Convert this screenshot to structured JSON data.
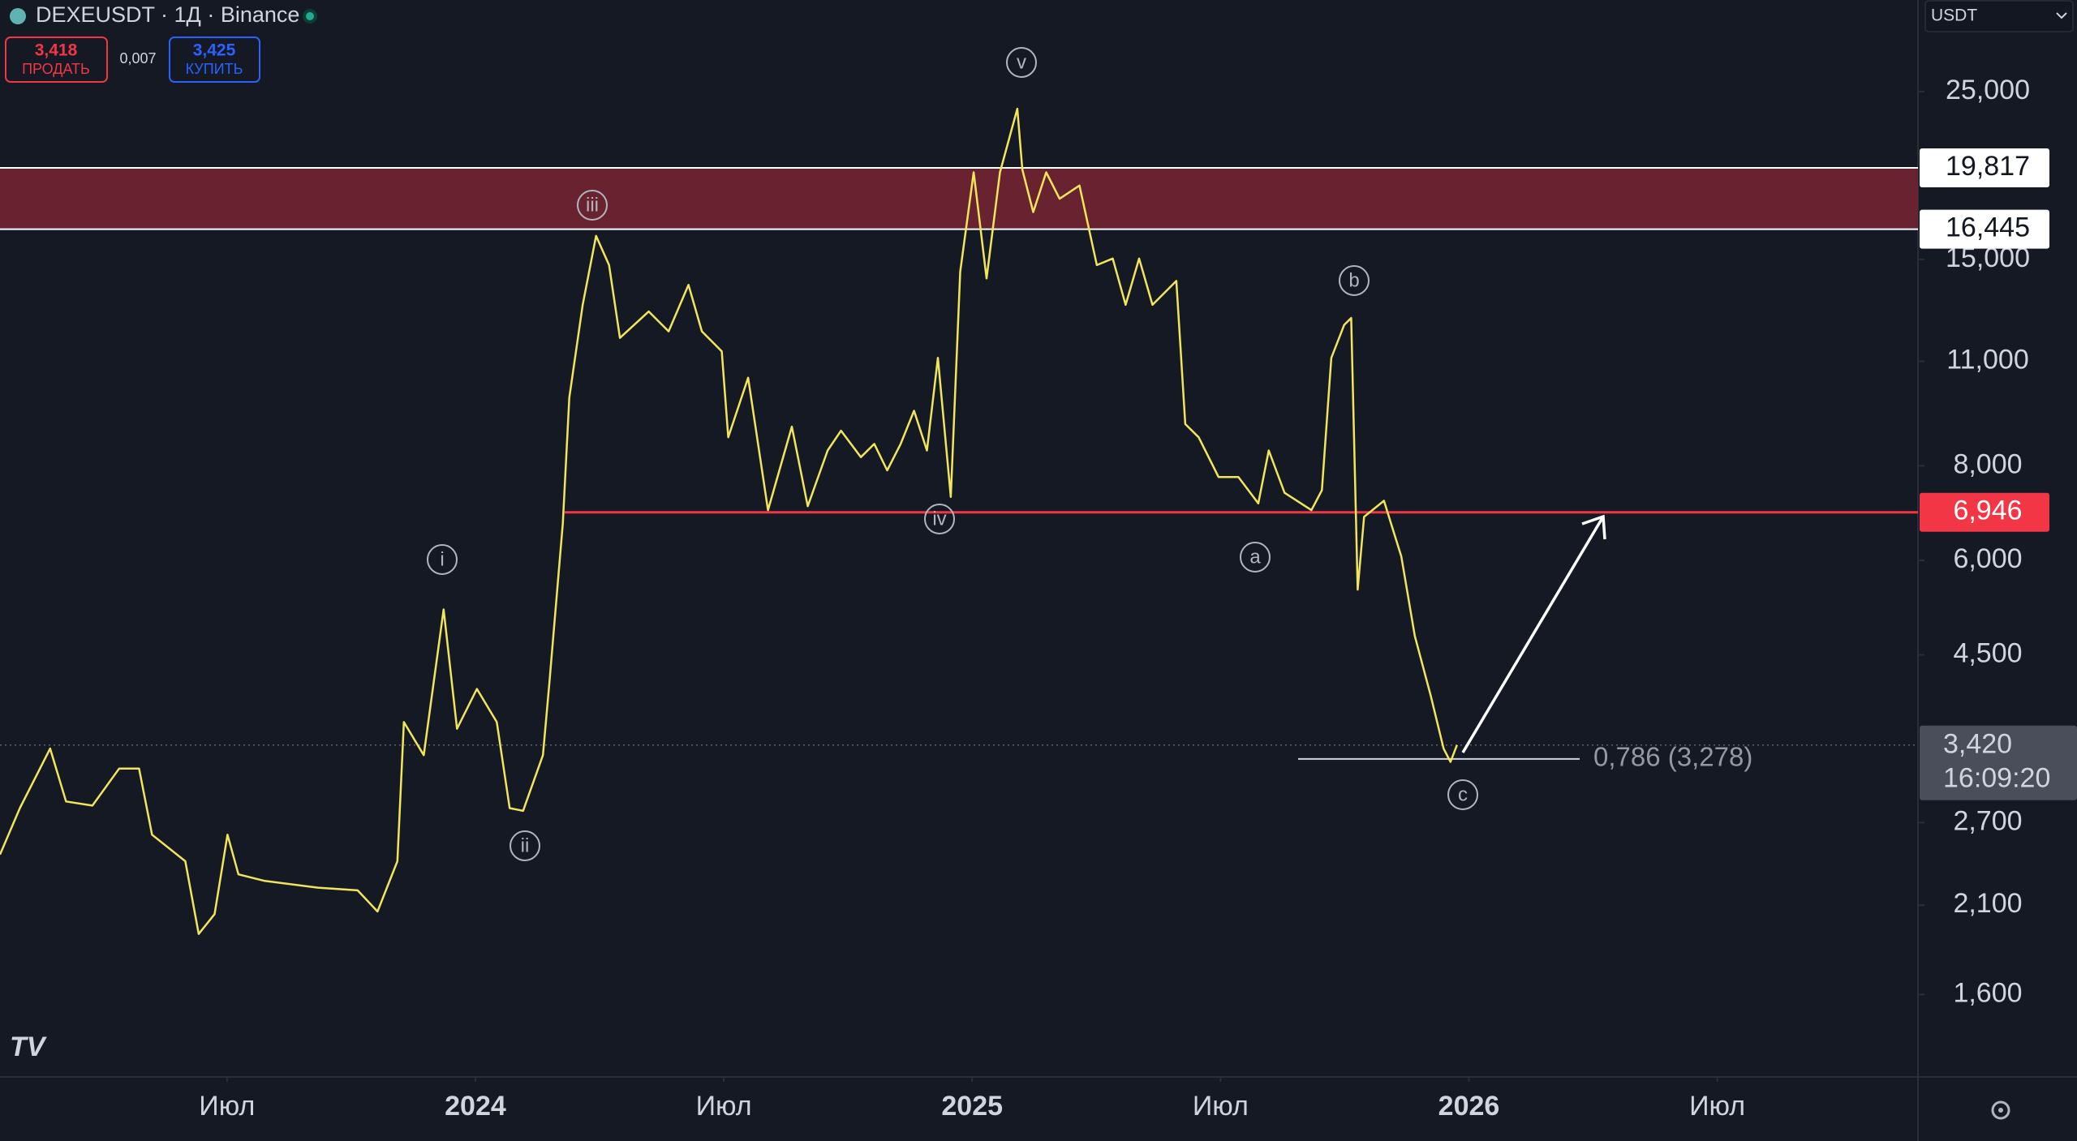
{
  "header": {
    "symbol": "DEXEUSDT · 1Д · Binance",
    "sell_price": "3,418",
    "sell_label": "ПРОДАТЬ",
    "spread": "0,007",
    "buy_price": "3,425",
    "buy_label": "КУПИТЬ",
    "currency": "USDT"
  },
  "chart_data": {
    "type": "line",
    "log_scale": true,
    "color": "#f2e55c",
    "x": [
      2023.043,
      2023.083,
      2023.144,
      2023.176,
      2023.229,
      2023.283,
      2023.323,
      2023.349,
      2023.416,
      2023.443,
      2023.475,
      2023.501,
      2023.523,
      2023.576,
      2023.683,
      2023.763,
      2023.803,
      2023.843,
      2023.856,
      2023.896,
      2023.936,
      2023.963,
      2024.003,
      2024.043,
      2024.069,
      2024.096,
      2024.136,
      2024.149,
      2024.176,
      2024.189,
      2024.216,
      2024.243,
      2024.269,
      2024.291,
      2024.349,
      2024.389,
      2024.429,
      2024.456,
      2024.496,
      2024.509,
      2024.549,
      2024.589,
      2024.637,
      2024.669,
      2024.709,
      2024.736,
      2024.776,
      2024.803,
      2024.829,
      2024.856,
      2024.883,
      2024.909,
      2024.931,
      2024.957,
      2024.976,
      2025.003,
      2025.029,
      2025.056,
      2025.091,
      2025.101,
      2025.123,
      2025.149,
      2025.176,
      2025.216,
      2025.251,
      2025.283,
      2025.309,
      2025.336,
      2025.363,
      2025.411,
      2025.429,
      2025.456,
      2025.496,
      2025.536,
      2025.576,
      2025.597,
      2025.629,
      2025.683,
      2025.704,
      2025.723,
      2025.749,
      2025.763,
      2025.776,
      2025.789,
      2025.829,
      2025.864,
      2025.891,
      2025.923,
      2025.949,
      2025.963,
      2025.976
    ],
    "values": [
      2.45,
      2.822,
      3.383,
      2.88,
      2.844,
      3.184,
      3.184,
      2.603,
      2.401,
      1.924,
      2.044,
      2.603,
      2.307,
      2.261,
      2.215,
      2.197,
      2.06,
      2.401,
      3.667,
      3.316,
      5.168,
      3.594,
      4.057,
      3.667,
      2.822,
      2.799,
      3.316,
      4.14,
      6.714,
      9.849,
      13.062,
      16.112,
      14.742,
      11.809,
      12.8,
      12.05,
      13.88,
      12.05,
      11.34,
      8.728,
      10.463,
      6.99,
      9.014,
      7.075,
      8.384,
      8.905,
      8.215,
      8.554,
      7.891,
      8.554,
      9.461,
      8.384,
      11.113,
      7.28,
      14.446,
      19.55,
      14.157,
      19.55,
      23.73,
      19.71,
      17.32,
      19.55,
      18.04,
      18.78,
      14.742,
      15.04,
      13.062,
      15.04,
      13.062,
      14.05,
      9.086,
      8.728,
      7.733,
      7.733,
      7.135,
      8.384,
      7.37,
      6.99,
      7.429,
      11.113,
      12.29,
      12.55,
      5.489,
      6.851,
      7.193,
      6.07,
      4.767,
      3.976,
      3.383,
      3.249,
      3.42
    ],
    "xlim": [
      2023.043,
      2026.904
    ],
    "xticks": [
      {
        "value": 2023.5,
        "label": "Июл"
      },
      2024,
      {
        "value": 2024.5,
        "label": "Июл"
      },
      2025,
      {
        "value": 2025.5,
        "label": "Июл"
      },
      2026,
      {
        "value": 2026.5,
        "label": "Июл"
      }
    ],
    "ylim": [
      1.245,
      33.04
    ],
    "yticks": [
      {
        "value": 25,
        "label": "25,000"
      },
      {
        "value": 15,
        "label": "15,000"
      },
      {
        "value": 11,
        "label": "11,000"
      },
      {
        "value": 8,
        "label": "8,000"
      },
      {
        "value": 6,
        "label": "6,000"
      },
      {
        "value": 4.5,
        "label": "4,500"
      },
      {
        "value": 2.7,
        "label": "2,700"
      },
      {
        "value": 2.1,
        "label": "2,100"
      },
      {
        "value": 1.6,
        "label": "1,600"
      }
    ],
    "zone": {
      "top": {
        "value": 19.817,
        "label": "19,817"
      },
      "bottom": {
        "value": 16.445,
        "label": "16,445"
      },
      "color": "#6e2431"
    },
    "support": {
      "value": 6.946,
      "label": "6,946",
      "color": "#f23645"
    },
    "fib_level": {
      "value": 3.278,
      "label": "0,786 (3,278)"
    },
    "last_price": {
      "value": 3.42,
      "label": "3,420"
    },
    "countdown": "16:09:20",
    "wave_labels": [
      "i",
      "ii",
      "iii",
      "iv",
      "v",
      "a",
      "b",
      "c"
    ]
  }
}
